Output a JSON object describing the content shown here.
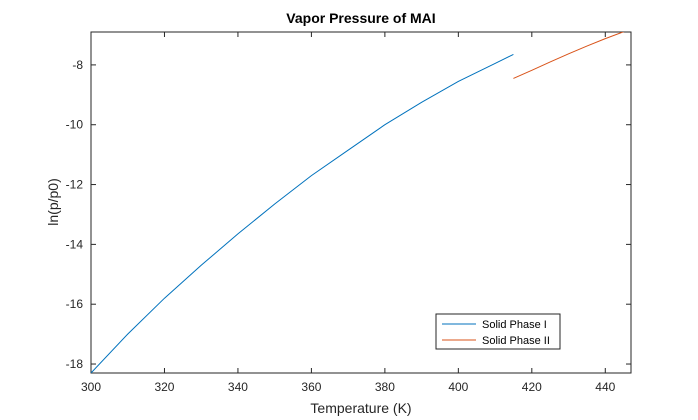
{
  "chart_data": {
    "type": "line",
    "title": "Vapor Pressure of MAI",
    "xlabel": "Temperature (K)",
    "ylabel": "ln(p/p0)",
    "xlim": [
      300,
      447
    ],
    "ylim": [
      -18.3,
      -6.9
    ],
    "xticks": [
      300,
      320,
      340,
      360,
      380,
      400,
      420,
      440
    ],
    "yticks": [
      -18,
      -16,
      -14,
      -12,
      -10,
      -8
    ],
    "grid": false,
    "legend_position": "bottom-right",
    "series": [
      {
        "name": "Solid Phase I",
        "color": "#0072bd",
        "x": [
          300,
          310,
          320,
          330,
          340,
          350,
          360,
          370,
          380,
          390,
          400,
          410,
          415
        ],
        "y": [
          -18.3,
          -17.0,
          -15.8,
          -14.7,
          -13.65,
          -12.65,
          -11.7,
          -10.85,
          -10.0,
          -9.25,
          -8.55,
          -7.95,
          -7.65
        ]
      },
      {
        "name": "Solid Phase II",
        "color": "#d95319",
        "x": [
          415,
          420,
          425,
          430,
          435,
          440,
          447
        ],
        "y": [
          -8.45,
          -8.18,
          -7.9,
          -7.63,
          -7.37,
          -7.12,
          -6.8
        ]
      }
    ]
  }
}
